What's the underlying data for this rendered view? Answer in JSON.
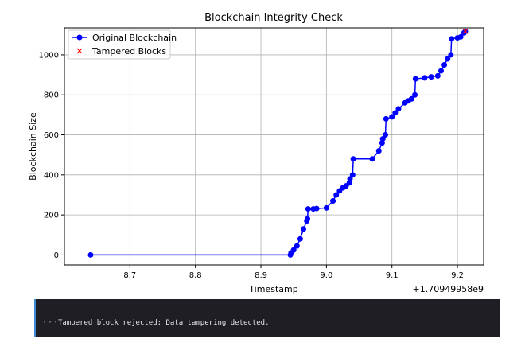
{
  "chart_data": {
    "type": "line",
    "title": "Blockchain Integrity Check",
    "xlabel": "Timestamp",
    "ylabel": "Blockchain Size",
    "x_offset_label": "+1.70949958e9",
    "xlim": [
      8.6,
      9.24
    ],
    "ylim": [
      -50,
      1135
    ],
    "xticks": [
      8.7,
      8.8,
      8.9,
      9.0,
      9.1,
      9.2
    ],
    "xtick_labels": [
      "8.7",
      "8.8",
      "8.9",
      "9.0",
      "9.1",
      "9.2"
    ],
    "yticks": [
      0,
      200,
      400,
      600,
      800,
      1000
    ],
    "ytick_labels": [
      "0",
      "200",
      "400",
      "600",
      "800",
      "1000"
    ],
    "grid": true,
    "legend": "upper-left",
    "series": [
      {
        "name": "Original Blockchain",
        "color": "#0000ff",
        "marker": "circle",
        "x": [
          8.64,
          8.945,
          8.946,
          8.95,
          8.955,
          8.96,
          8.965,
          8.97,
          8.971,
          8.972,
          8.98,
          8.985,
          9.0,
          9.01,
          9.015,
          9.02,
          9.025,
          9.03,
          9.035,
          9.036,
          9.04,
          9.041,
          9.07,
          9.08,
          9.085,
          9.086,
          9.09,
          9.091,
          9.1,
          9.105,
          9.11,
          9.12,
          9.125,
          9.13,
          9.135,
          9.136,
          9.15,
          9.16,
          9.17,
          9.175,
          9.18,
          9.185,
          9.19,
          9.191,
          9.2,
          9.205,
          9.21,
          9.212
        ],
        "y": [
          0,
          0,
          10,
          25,
          45,
          80,
          130,
          170,
          180,
          230,
          230,
          232,
          235,
          270,
          300,
          320,
          335,
          345,
          360,
          380,
          400,
          480,
          480,
          520,
          560,
          580,
          600,
          680,
          690,
          710,
          730,
          760,
          770,
          780,
          800,
          880,
          885,
          890,
          895,
          920,
          950,
          980,
          1000,
          1080,
          1085,
          1090,
          1110,
          1118
        ]
      },
      {
        "name": "Tampered Blocks",
        "color": "#ff0000",
        "marker": "x",
        "x": [
          9.212
        ],
        "y": [
          1118
        ]
      }
    ]
  },
  "output": {
    "ellipsis": "···",
    "message": "Tampered block rejected: Data tampering detected."
  }
}
